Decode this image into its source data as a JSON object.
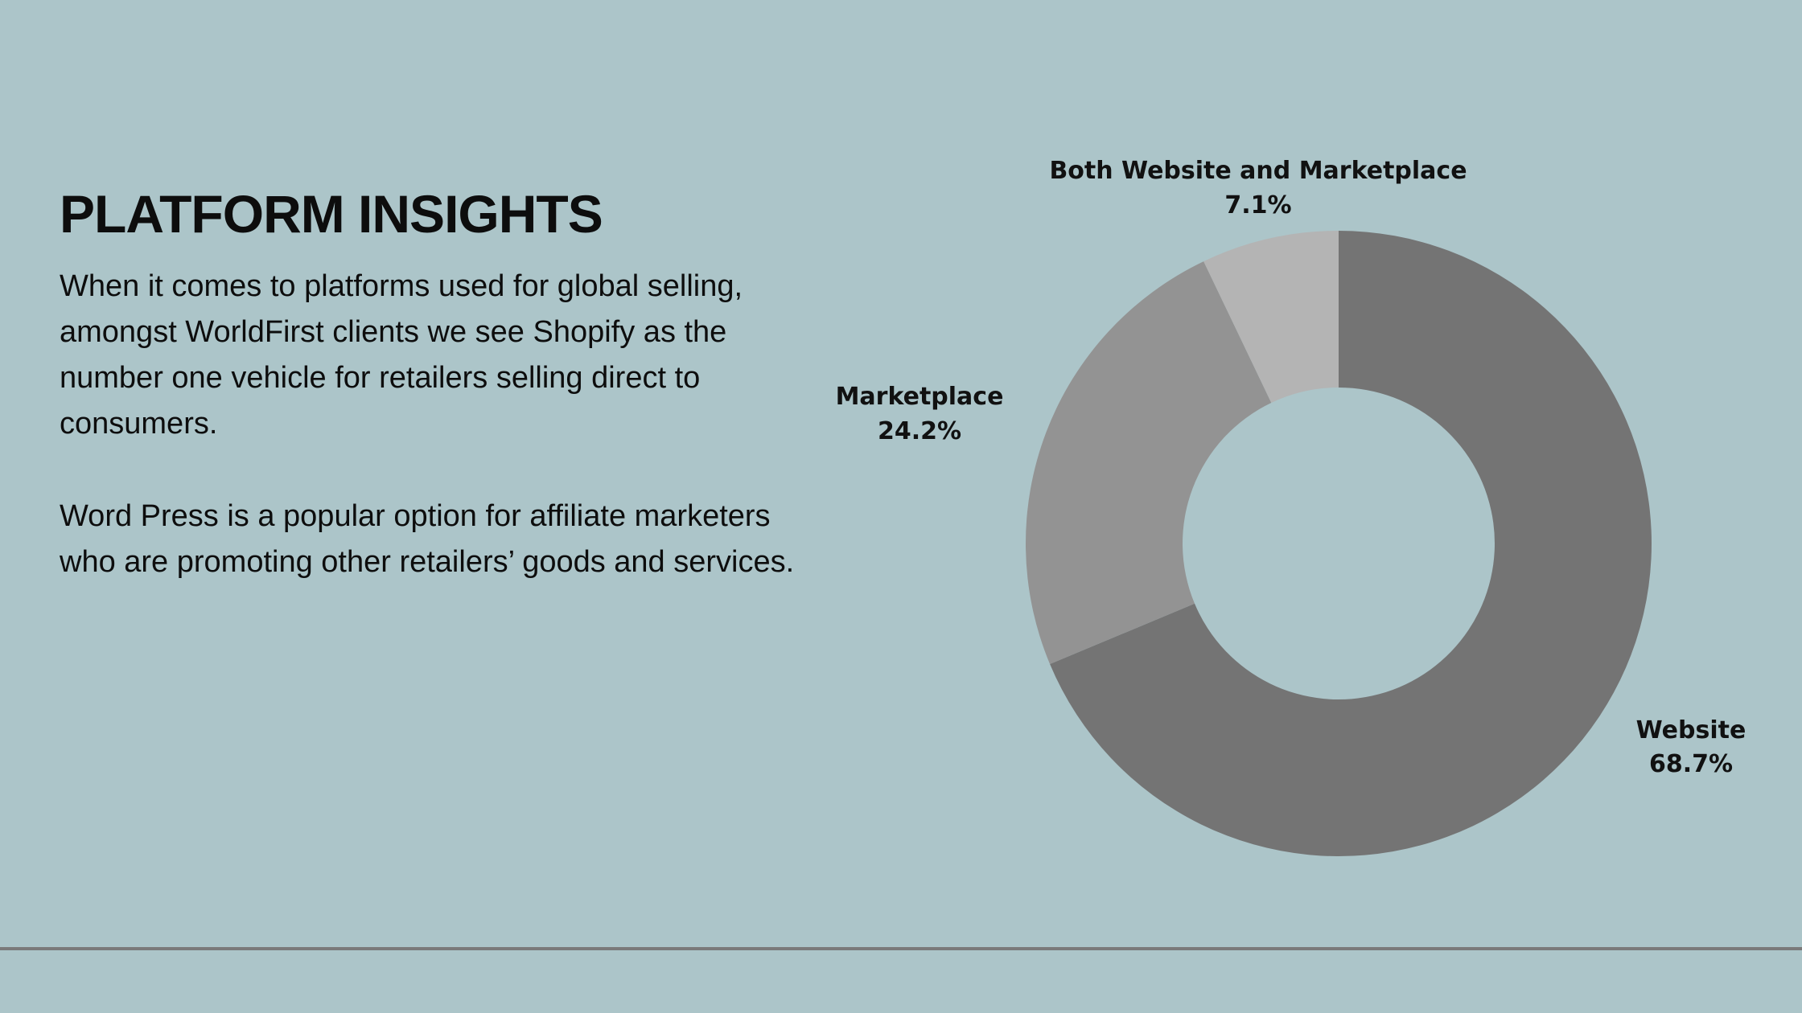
{
  "content": {
    "title": "PLATFORM INSIGHTS",
    "paragraph1": "When it comes to platforms used for global selling, amongst WorldFirst clients we see Shopify as the number one vehicle for retailers selling direct to consumers.",
    "paragraph2": "Word Press is a popular option for affiliate marketers who are promoting other retailers’ goods and services."
  },
  "colors": {
    "background": "#acc5c9",
    "divider": "#7a7a7a"
  },
  "chart_data": {
    "type": "pie",
    "variant": "donut",
    "slices": [
      {
        "label": "Website",
        "value": 68.7,
        "display": "68.7%",
        "color": "#747474"
      },
      {
        "label": "Marketplace",
        "value": 24.2,
        "display": "24.2%",
        "color": "#939393"
      },
      {
        "label": "Both Website and Marketplace",
        "value": 7.1,
        "display": "7.1%",
        "color": "#b4b4b4"
      }
    ],
    "start": "12 o'clock",
    "direction": "clockwise",
    "legend": "none",
    "labels": "outside"
  }
}
